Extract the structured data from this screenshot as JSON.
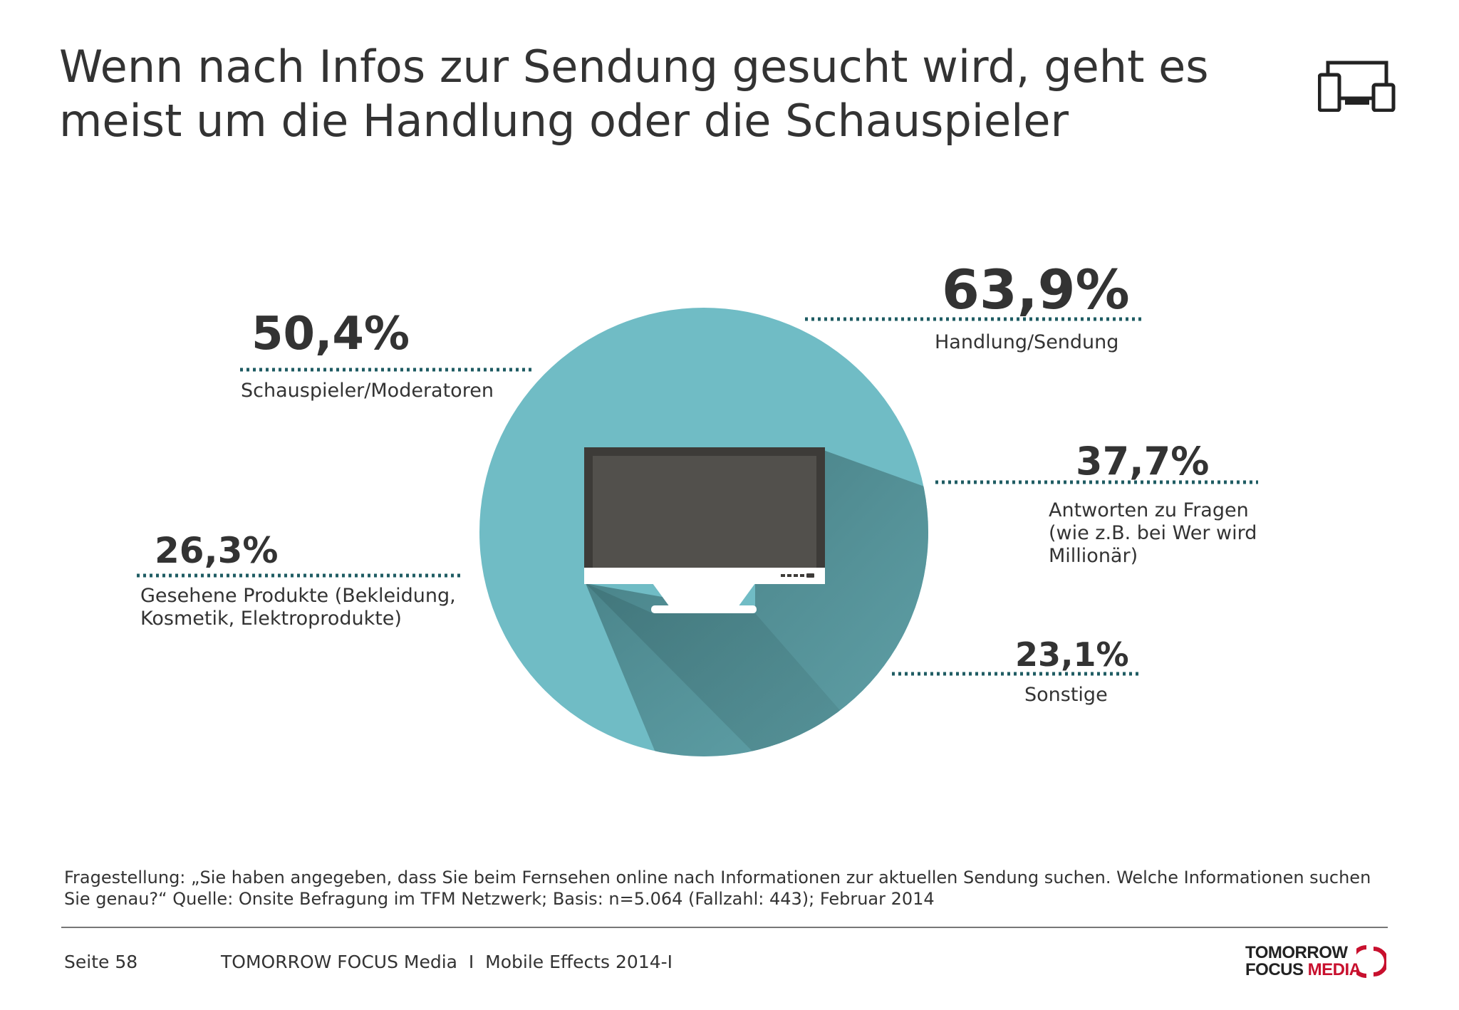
{
  "title": "Wenn nach Infos zur Sendung gesucht wird, geht es meist um die Handlung oder die Schauspieler",
  "header_icon": "devices-icon",
  "center_icon": "tv-monitor-icon",
  "colors": {
    "circle": "#70bcc5",
    "dots": "#1f5c63",
    "shadow": "#4c8489",
    "screen": "#4f4d49",
    "logo_red": "#c8102e"
  },
  "chart_data": {
    "type": "pie",
    "values": [
      63.9,
      50.4,
      37.7,
      26.3,
      23.1
    ],
    "categories": [
      "Handlung/Sendung",
      "Schauspieler/Moderatoren",
      "Antworten zu Fragen (wie z.B. bei Wer wird Millionär)",
      "Gesehene Produkte (Bekleidung, Kosmetik, Elektroprodukte)",
      "Sonstige"
    ],
    "items": [
      {
        "value": 63.9,
        "value_label": "63,9%",
        "label": "Handlung/Sendung"
      },
      {
        "value": 50.4,
        "value_label": "50,4%",
        "label": "Schauspieler/Moderatoren"
      },
      {
        "value": 37.7,
        "value_label": "37,7%",
        "label": "Antworten zu Fragen\n(wie z.B. bei Wer wird\nMillionär)"
      },
      {
        "value": 26.3,
        "value_label": "26,3%",
        "label": "Gesehene Produkte (Bekleidung,\nKosmetik, Elektroprodukte)"
      },
      {
        "value": 23.1,
        "value_label": "23,1%",
        "label": "Sonstige"
      }
    ]
  },
  "footnote": "Fragestellung: „Sie haben angegeben, dass Sie beim Fernsehen online nach Informationen zur aktuellen Sendung suchen. Welche Informationen suchen Sie genau?“ Quelle: Onsite Befragung im TFM Netzwerk; Basis: n=5.064 (Fallzahl: 443); Februar 2014",
  "footer": {
    "page": "Seite 58",
    "publisher": "TOMORROW FOCUS Media  I  Mobile Effects 2014-I"
  },
  "logo": {
    "line1": "TOMORROW",
    "line2_a": "FOCUS ",
    "line2_b": "MEDIA"
  }
}
